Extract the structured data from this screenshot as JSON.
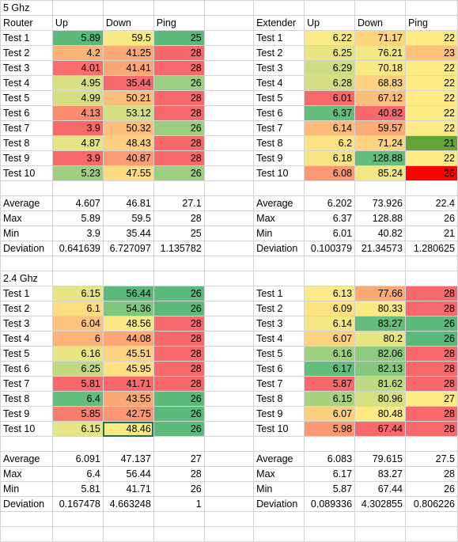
{
  "sheet": {
    "rows": [
      [
        "5 Ghz",
        "",
        "",
        "",
        "",
        "",
        "",
        ""
      ],
      [
        "Router",
        "Up",
        "Down",
        "Ping",
        "",
        "Extender",
        "Up",
        "Down",
        "Ping"
      ],
      [
        "Test 1",
        "5.89",
        "59.5",
        "25",
        "",
        "Test 1",
        "6.22",
        "71.17",
        "22"
      ],
      [
        "Test 2",
        "4.2",
        "41.25",
        "28",
        "",
        "Test 2",
        "6.25",
        "76.21",
        "23"
      ],
      [
        "Test 3",
        "4.01",
        "41.41",
        "28",
        "",
        "Test 3",
        "6.29",
        "70.18",
        "22"
      ],
      [
        "Test 4",
        "4.95",
        "35.44",
        "26",
        "",
        "Test 4",
        "6.28",
        "68.83",
        "22"
      ],
      [
        "Test 5",
        "4.99",
        "50.21",
        "28",
        "",
        "Test 5",
        "6.01",
        "67.12",
        "22"
      ],
      [
        "Test 6",
        "4.13",
        "53.12",
        "28",
        "",
        "Test 6",
        "6.37",
        "40.82",
        "22"
      ],
      [
        "Test 7",
        "3.9",
        "50.32",
        "26",
        "",
        "Test 7",
        "6.14",
        "59.57",
        "22"
      ],
      [
        "Test 8",
        "4.87",
        "48.43",
        "28",
        "",
        "Test 8",
        "6.2",
        "71.24",
        "21"
      ],
      [
        "Test 9",
        "3.9",
        "40.87",
        "28",
        "",
        "Test 9",
        "6.18",
        "128.88",
        "22"
      ],
      [
        "Test 10",
        "5.23",
        "47.55",
        "26",
        "",
        "Test 10",
        "6.08",
        "85.24",
        "26"
      ],
      [
        "",
        "",
        "",
        "",
        "",
        "",
        "",
        "",
        ""
      ],
      [
        "Average",
        "4.607",
        "46.81",
        "27.1",
        "",
        "Average",
        "6.202",
        "73.926",
        "22.4"
      ],
      [
        "Max",
        "5.89",
        "59.5",
        "28",
        "",
        "Max",
        "6.37",
        "128.88",
        "26"
      ],
      [
        "Min",
        "3.9",
        "35.44",
        "25",
        "",
        "Min",
        "6.01",
        "40.82",
        "21"
      ],
      [
        "Deviation",
        "0.641639",
        "6.727097",
        "1.135782",
        "",
        "Deviation",
        "0.100379",
        "21.34573",
        "1.280625"
      ],
      [
        "",
        "",
        "",
        "",
        "",
        "",
        "",
        "",
        ""
      ],
      [
        "2.4 Ghz",
        "",
        "",
        "",
        "",
        "",
        "",
        "",
        ""
      ],
      [
        "Test 1",
        "6.15",
        "56.44",
        "26",
        "",
        "Test 1",
        "6.13",
        "77.66",
        "28"
      ],
      [
        "Test 2",
        "6.1",
        "54.36",
        "26",
        "",
        "Test 2",
        "6.09",
        "80.33",
        "28"
      ],
      [
        "Test 3",
        "6.04",
        "48.56",
        "28",
        "",
        "Test 3",
        "6.14",
        "83.27",
        "26"
      ],
      [
        "Test 4",
        "6",
        "44.08",
        "28",
        "",
        "Test 4",
        "6.07",
        "80.2",
        "26"
      ],
      [
        "Test 5",
        "6.16",
        "45.51",
        "28",
        "",
        "Test 5",
        "6.16",
        "82.06",
        "28"
      ],
      [
        "Test 6",
        "6.25",
        "45.95",
        "28",
        "",
        "Test 6",
        "6.17",
        "82.13",
        "28"
      ],
      [
        "Test 7",
        "5.81",
        "41.71",
        "28",
        "",
        "Test 7",
        "5.87",
        "81.62",
        "28"
      ],
      [
        "Test 8",
        "6.4",
        "43.55",
        "26",
        "",
        "Test 8",
        "6.15",
        "80.96",
        "27"
      ],
      [
        "Test 9",
        "5.85",
        "42.75",
        "26",
        "",
        "Test 9",
        "6.07",
        "80.48",
        "28"
      ],
      [
        "Test 10",
        "6.15",
        "48.46",
        "26",
        "",
        "Test 10",
        "5.98",
        "67.44",
        "28"
      ],
      [
        "",
        "",
        "",
        "",
        "",
        "",
        "",
        "",
        ""
      ],
      [
        "Average",
        "6.091",
        "47.137",
        "27",
        "",
        "Average",
        "6.083",
        "79.615",
        "27.5"
      ],
      [
        "Max",
        "6.4",
        "56.44",
        "28",
        "",
        "Max",
        "6.17",
        "83.27",
        "28"
      ],
      [
        "Min",
        "5.81",
        "41.71",
        "26",
        "",
        "Min",
        "5.87",
        "67.44",
        "26"
      ],
      [
        "Deviation",
        "0.167478",
        "4.663248",
        "1",
        "",
        "Deviation",
        "0.089336",
        "4.302855",
        "0.806226"
      ]
    ],
    "fills": {
      "2": [
        "",
        "#5ab97b",
        "#f8e984",
        "#5ab97b",
        "",
        "",
        "#f9ec86",
        "#fdd57e",
        "#ffeb84"
      ],
      "3": [
        "",
        "#fbb277",
        "#fca976",
        "#f8696b",
        "",
        "",
        "#e8e482",
        "#f1e783",
        "#ffc27b"
      ],
      "4": [
        "",
        "#f86e6c",
        "#fba775",
        "#f8696b",
        "",
        "",
        "#ccdd82",
        "#f8e984",
        "#ffeb84"
      ],
      "5": [
        "",
        "#d9e081",
        "#f8696b",
        "#9bcf7f",
        "",
        "",
        "#d3df82",
        "#fdd17f",
        "#ffeb84"
      ],
      "6": [
        "",
        "#d5df81",
        "#fcbf7b",
        "#f8696b",
        "",
        "",
        "#f8696b",
        "#fcbd7b",
        "#ffeb84"
      ],
      "7": [
        "",
        "#fa8c70",
        "#d4df81",
        "#f8696b",
        "",
        "",
        "#63be7b",
        "#f8696b",
        "#ffeb84"
      ],
      "8": [
        "",
        "#f8696b",
        "#fcc07b",
        "#9bcf7f",
        "",
        "",
        "#fdbc7a",
        "#fbab76",
        "#ffeb84"
      ],
      "9": [
        "",
        "#e6e483",
        "#fdd07f",
        "#f8696b",
        "",
        "",
        "#fde283",
        "#fdd37f",
        "#63a436"
      ],
      "10": [
        "",
        "#f8696b",
        "#fb9d74",
        "#f8696b",
        "",
        "",
        "#f8e483",
        "#63be7b",
        "#ffeb84"
      ],
      "11": [
        "",
        "#9fd07f",
        "#feda80",
        "#9bcf7f",
        "",
        "",
        "#fa9873",
        "#f3e783",
        "#ff0000"
      ],
      "19": [
        "",
        "#e6e483",
        "#5ab97b",
        "#5ab97b",
        "",
        "",
        "#fce98a",
        "#fbaa76",
        "#f8696b"
      ],
      "20": [
        "",
        "#fcde81",
        "#81c67d",
        "#5ab97b",
        "",
        "",
        "#fce281",
        "#f9e884",
        "#f8696b"
      ],
      "21": [
        "",
        "#fdc27c",
        "#f9e884",
        "#f8696b",
        "",
        "",
        "#f1e783",
        "#63be7b",
        "#5ab97b"
      ],
      "22": [
        "",
        "#fcb37a",
        "#fba776",
        "#f8696b",
        "",
        "",
        "#fcd27f",
        "#e8e583",
        "#5ab97b"
      ],
      "23": [
        "",
        "#e9e583",
        "#fed380",
        "#f8696b",
        "",
        "",
        "#9dd07f",
        "#8cca7e",
        "#f8696b"
      ],
      "24": [
        "",
        "#c1d980",
        "#fde081",
        "#f8696b",
        "",
        "",
        "#63be7b",
        "#85c87d",
        "#f8696b"
      ],
      "25": [
        "",
        "#f8696b",
        "#f8696b",
        "#f8696b",
        "",
        "",
        "#f8696b",
        "#bfd980",
        "#f8696b"
      ],
      "26": [
        "",
        "#63be7b",
        "#fbaa76",
        "#5ab97b",
        "",
        "",
        "#a7d27f",
        "#d6df81",
        "#ffeb84"
      ],
      "27": [
        "",
        "#f97d6e",
        "#fb9674",
        "#5ab97b",
        "",
        "",
        "#fcd07f",
        "#feea84",
        "#f8696b"
      ],
      "28": [
        "",
        "#e6e483",
        "#fbea84",
        "#5ab97b",
        "",
        "",
        "#fa9873",
        "#f8696b",
        "#f8696b"
      ]
    }
  }
}
